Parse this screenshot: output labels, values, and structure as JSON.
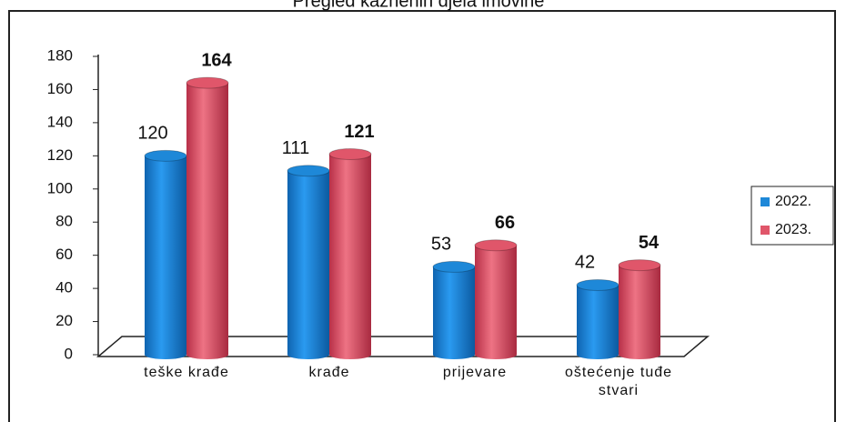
{
  "chart_data": {
    "type": "bar",
    "title": "Pregled kaznenih djela imovine",
    "categories": [
      "teške krađe",
      "krađe",
      "prijevare",
      "oštećenje tuđe stvari"
    ],
    "series": [
      {
        "name": "2022.",
        "color": "#1e88d8",
        "values": [
          120,
          111,
          53,
          42
        ]
      },
      {
        "name": "2023.",
        "color": "#e0566a",
        "values": [
          164,
          121,
          66,
          54
        ]
      }
    ],
    "ylim": [
      0,
      180
    ],
    "yticks": [
      0,
      20,
      40,
      60,
      80,
      100,
      120,
      140,
      160,
      180
    ],
    "grid": false,
    "legend": "right"
  }
}
